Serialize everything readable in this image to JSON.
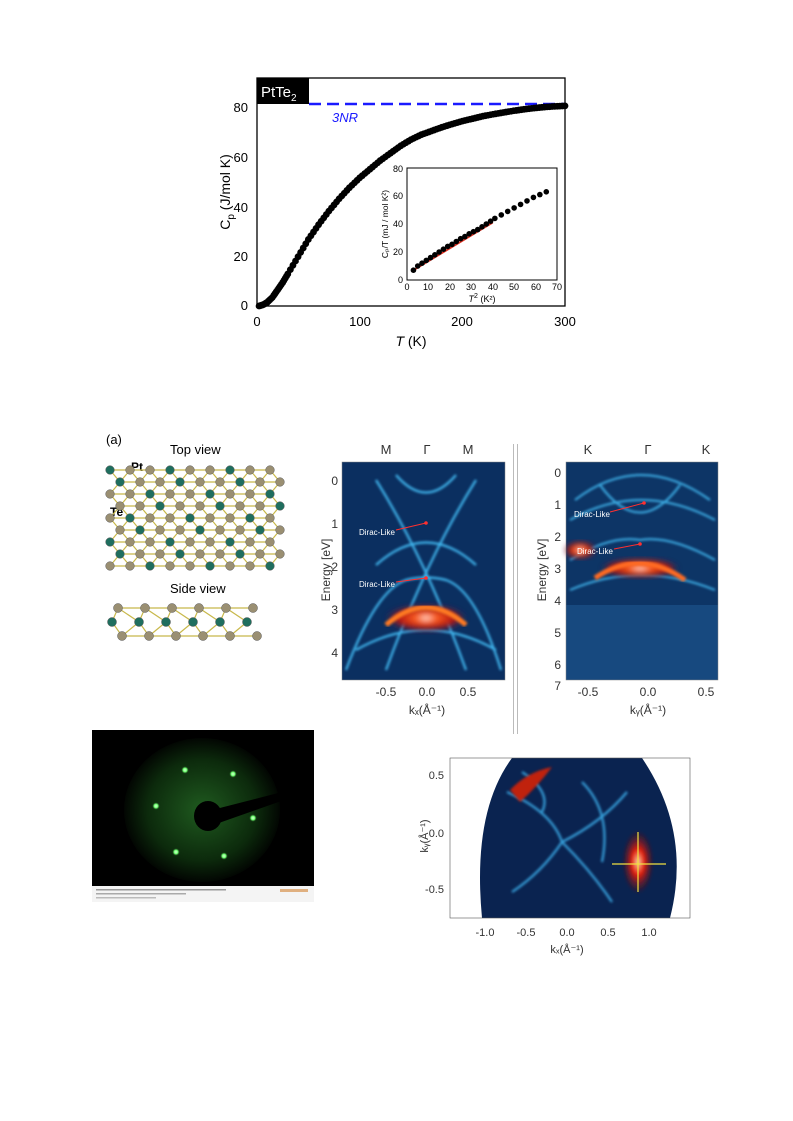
{
  "figure1": {
    "badge_main": "PtTe",
    "badge_sub": "2",
    "ref_label": "3NR",
    "ylabel_main": "C",
    "ylabel_sub": "p",
    "ylabel_rest": " (J/mol K)",
    "xlabel_italic": "T",
    "xlabel_rest": " (K)",
    "x_ticks": [
      "0",
      "100",
      "200",
      "300"
    ],
    "y_ticks": [
      "0",
      "20",
      "40",
      "60",
      "80"
    ],
    "inset": {
      "ylabel": "Cₚ/T (mJ / mol K²)",
      "xlabel_italic": "T",
      "xlabel_sup": "2",
      "xlabel_rest": " (K²)",
      "x_ticks": [
        "0",
        "10",
        "20",
        "30",
        "40",
        "50",
        "60",
        "70"
      ],
      "y_ticks": [
        "0",
        "20",
        "40",
        "60",
        "80"
      ]
    }
  },
  "chart_data": [
    {
      "type": "scatter",
      "xlabel": "T (K)",
      "ylabel": "Cp (J/mol K)",
      "xlim": [
        0,
        300
      ],
      "ylim": [
        0,
        85
      ],
      "reference_line": {
        "label": "3NR",
        "y": 81,
        "color": "#1a1aff",
        "style": "dashed"
      },
      "x": [
        2,
        6,
        10,
        15,
        20,
        25,
        30,
        40,
        50,
        60,
        70,
        80,
        90,
        100,
        110,
        120,
        130,
        140,
        150,
        160,
        170,
        180,
        190,
        200,
        210,
        220,
        230,
        240,
        250,
        260,
        270,
        280,
        290,
        300
      ],
      "y": [
        0,
        0.5,
        1.5,
        3.5,
        6.5,
        9.5,
        13,
        20,
        27,
        33,
        38.5,
        43.5,
        48,
        52,
        55.5,
        59,
        62,
        65,
        67.5,
        69.5,
        71,
        72.5,
        73.8,
        75,
        76,
        77,
        77.8,
        78.5,
        79.2,
        79.8,
        80.3,
        80.7,
        81,
        81.2
      ]
    },
    {
      "type": "scatter",
      "xlabel": "T² (K²)",
      "ylabel": "Cp/T (mJ / mol K²)",
      "xlim": [
        0,
        70
      ],
      "ylim": [
        0,
        80
      ],
      "fit_line": {
        "color": "#e03020",
        "x": [
          3,
          40
        ],
        "y": [
          7,
          41
        ]
      },
      "x": [
        3,
        5,
        7,
        9,
        11,
        13,
        15,
        17,
        19,
        21,
        23,
        25,
        27,
        29,
        31,
        33,
        35,
        37,
        39,
        41,
        44,
        47,
        50,
        53,
        56,
        59,
        62,
        65
      ],
      "y": [
        7,
        10,
        12,
        14,
        16,
        18,
        20,
        22,
        24,
        25.5,
        27.5,
        29.5,
        31,
        33,
        34.5,
        36,
        38,
        40,
        42,
        44,
        46.5,
        49,
        51.5,
        54,
        56.5,
        59,
        61,
        63
      ]
    }
  ],
  "figure2": {
    "panel_label": "(a)",
    "top_view": "Top view",
    "side_view": "Side view",
    "atom_pt": "Pt",
    "atom_te": "Te",
    "arpes1": {
      "top_labels": [
        "M",
        "Γ",
        "M"
      ],
      "ylabel": "Energy [eV]",
      "y_ticks": [
        "0",
        "1",
        "2",
        "3",
        "4"
      ],
      "x_ticks": [
        "-0.5",
        "0.0",
        "0.5"
      ],
      "xlabel": "kₓ(Å⁻¹)",
      "annot1": "Dirac-Like",
      "annot2": "Dirac-Like"
    },
    "arpes2": {
      "top_labels": [
        "K",
        "Γ",
        "K"
      ],
      "ylabel": "Energy [eV]",
      "y_ticks": [
        "0",
        "1",
        "2",
        "3",
        "4",
        "5",
        "6",
        "7"
      ],
      "x_ticks": [
        "-0.5",
        "0.0",
        "0.5"
      ],
      "xlabel": "kᵧ(Å⁻¹)",
      "annot1": "Dirac-Like",
      "annot2": "Dirac-Like"
    },
    "fermi": {
      "ylabel": "kᵧ(Å⁻¹)",
      "xlabel": "kₓ(Å⁻¹)",
      "y_ticks": [
        "0.5",
        "0.0",
        "-0.5"
      ],
      "x_ticks": [
        "-1.0",
        "-0.5",
        "0.0",
        "0.5",
        "1.0"
      ]
    }
  },
  "colors": {
    "accent_blue": "#1a1aff",
    "fit_red": "#e03020",
    "arpes_bg": "#0a2a5a",
    "leed_green": "#7cff7c"
  }
}
